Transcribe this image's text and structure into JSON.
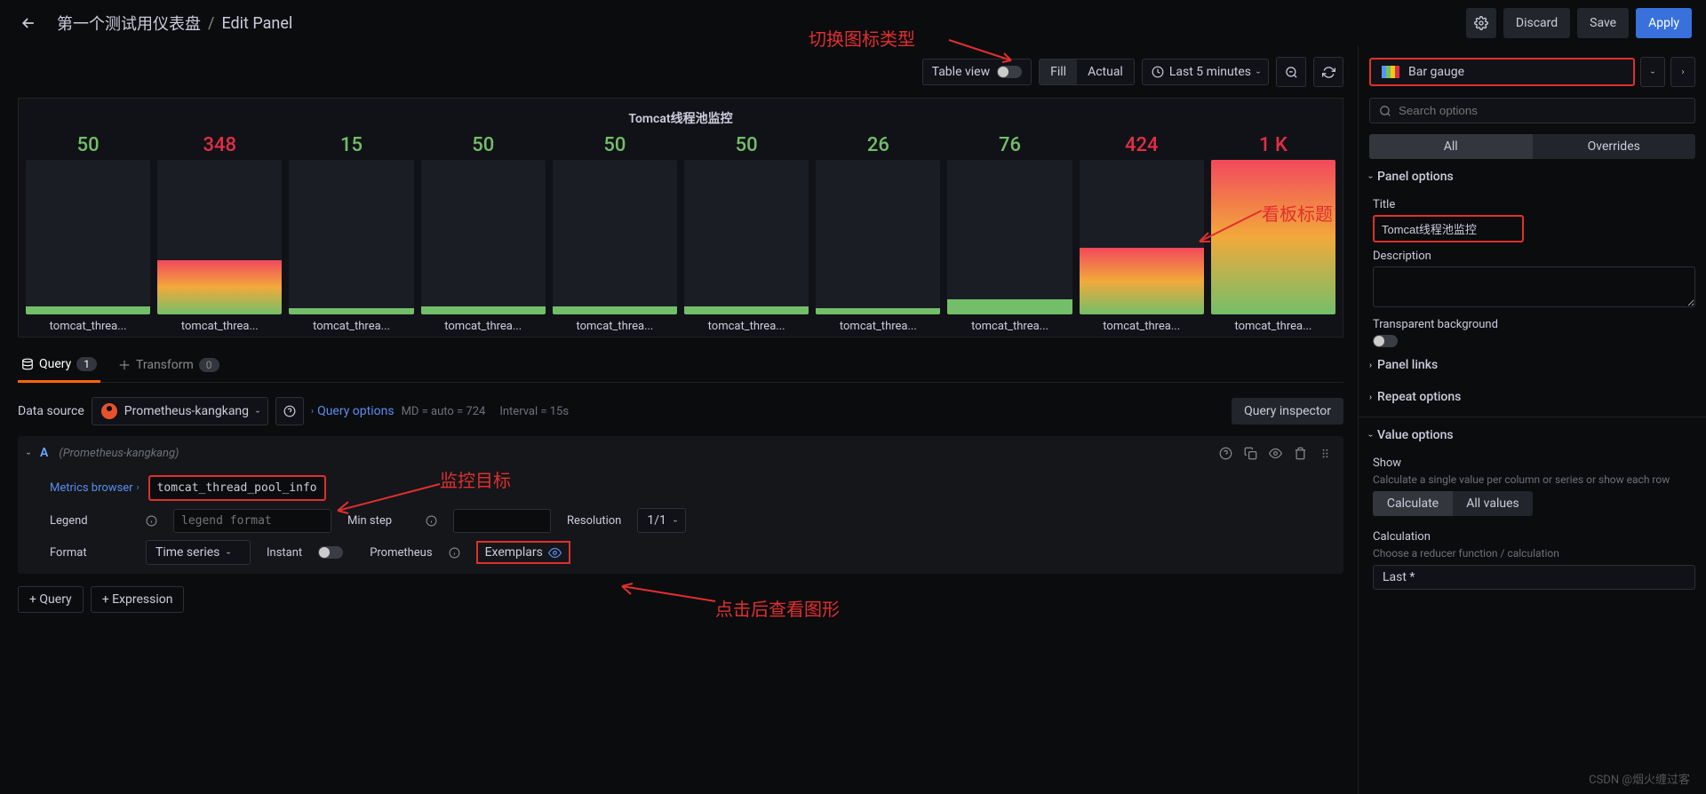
{
  "header": {
    "dashboard_name": "第一个测试用仪表盘",
    "sep": "/",
    "page": "Edit Panel",
    "discard": "Discard",
    "save": "Save",
    "apply": "Apply"
  },
  "toolbar": {
    "table_view": "Table view",
    "fill": "Fill",
    "actual": "Actual",
    "time_range": "Last 5 minutes",
    "viz_type": "Bar gauge"
  },
  "panel": {
    "title": "Tomcat线程池监控",
    "gauges": [
      {
        "value": "50",
        "color": "#73bf69",
        "fill": 5,
        "label": "tomcat_threa..."
      },
      {
        "value": "348",
        "color": "#e02f44",
        "fill": 35,
        "label": "tomcat_threa..."
      },
      {
        "value": "15",
        "color": "#73bf69",
        "fill": 4,
        "label": "tomcat_threa..."
      },
      {
        "value": "50",
        "color": "#73bf69",
        "fill": 5,
        "label": "tomcat_threa..."
      },
      {
        "value": "50",
        "color": "#73bf69",
        "fill": 5,
        "label": "tomcat_threa..."
      },
      {
        "value": "50",
        "color": "#73bf69",
        "fill": 5,
        "label": "tomcat_threa..."
      },
      {
        "value": "26",
        "color": "#73bf69",
        "fill": 4,
        "label": "tomcat_threa..."
      },
      {
        "value": "76",
        "color": "#73bf69",
        "fill": 10,
        "label": "tomcat_threa..."
      },
      {
        "value": "424",
        "color": "#e02f44",
        "fill": 43,
        "label": "tomcat_threa..."
      },
      {
        "value": "1 K",
        "color": "#e02f44",
        "fill": 100,
        "label": "tomcat_threa..."
      }
    ]
  },
  "tabs": {
    "query": "Query",
    "query_count": "1",
    "transform": "Transform",
    "transform_count": "0"
  },
  "datasource": {
    "label": "Data source",
    "value": "Prometheus-kangkang",
    "query_options": "Query options",
    "md": "MD = auto = 724",
    "interval": "Interval = 15s",
    "inspector": "Query inspector"
  },
  "query": {
    "ref": "A",
    "ds_hint": "(Prometheus-kangkang)",
    "metrics_browser": "Metrics browser",
    "expr": "tomcat_thread_pool_info",
    "legend_label": "Legend",
    "legend_placeholder": "legend format",
    "min_step_label": "Min step",
    "resolution_label": "Resolution",
    "resolution_value": "1/1",
    "format_label": "Format",
    "format_value": "Time series",
    "instant_label": "Instant",
    "prometheus_label": "Prometheus",
    "exemplars_label": "Exemplars",
    "add_query": "+ Query",
    "add_expr": "+ Expression"
  },
  "options": {
    "search_placeholder": "Search options",
    "all": "All",
    "overrides": "Overrides",
    "panel_options": "Panel options",
    "title_label": "Title",
    "title_value": "Tomcat线程池监控",
    "description_label": "Description",
    "transparent_label": "Transparent background",
    "panel_links": "Panel links",
    "repeat_options": "Repeat options",
    "value_options": "Value options",
    "show_label": "Show",
    "show_desc": "Calculate a single value per column or series or show each row",
    "calculate": "Calculate",
    "all_values": "All values",
    "calculation_label": "Calculation",
    "calculation_desc": "Choose a reducer function / calculation",
    "calculation_value": "Last *"
  },
  "annotations": {
    "viz": "切换图标类型",
    "title": "看板标题",
    "target": "监控目标",
    "exemplars": "点击后查看图形"
  },
  "watermark": "CSDN @烟火缠过客",
  "colors": {
    "red": "#e02f44",
    "green": "#73bf69",
    "accent": "#3871dc"
  }
}
